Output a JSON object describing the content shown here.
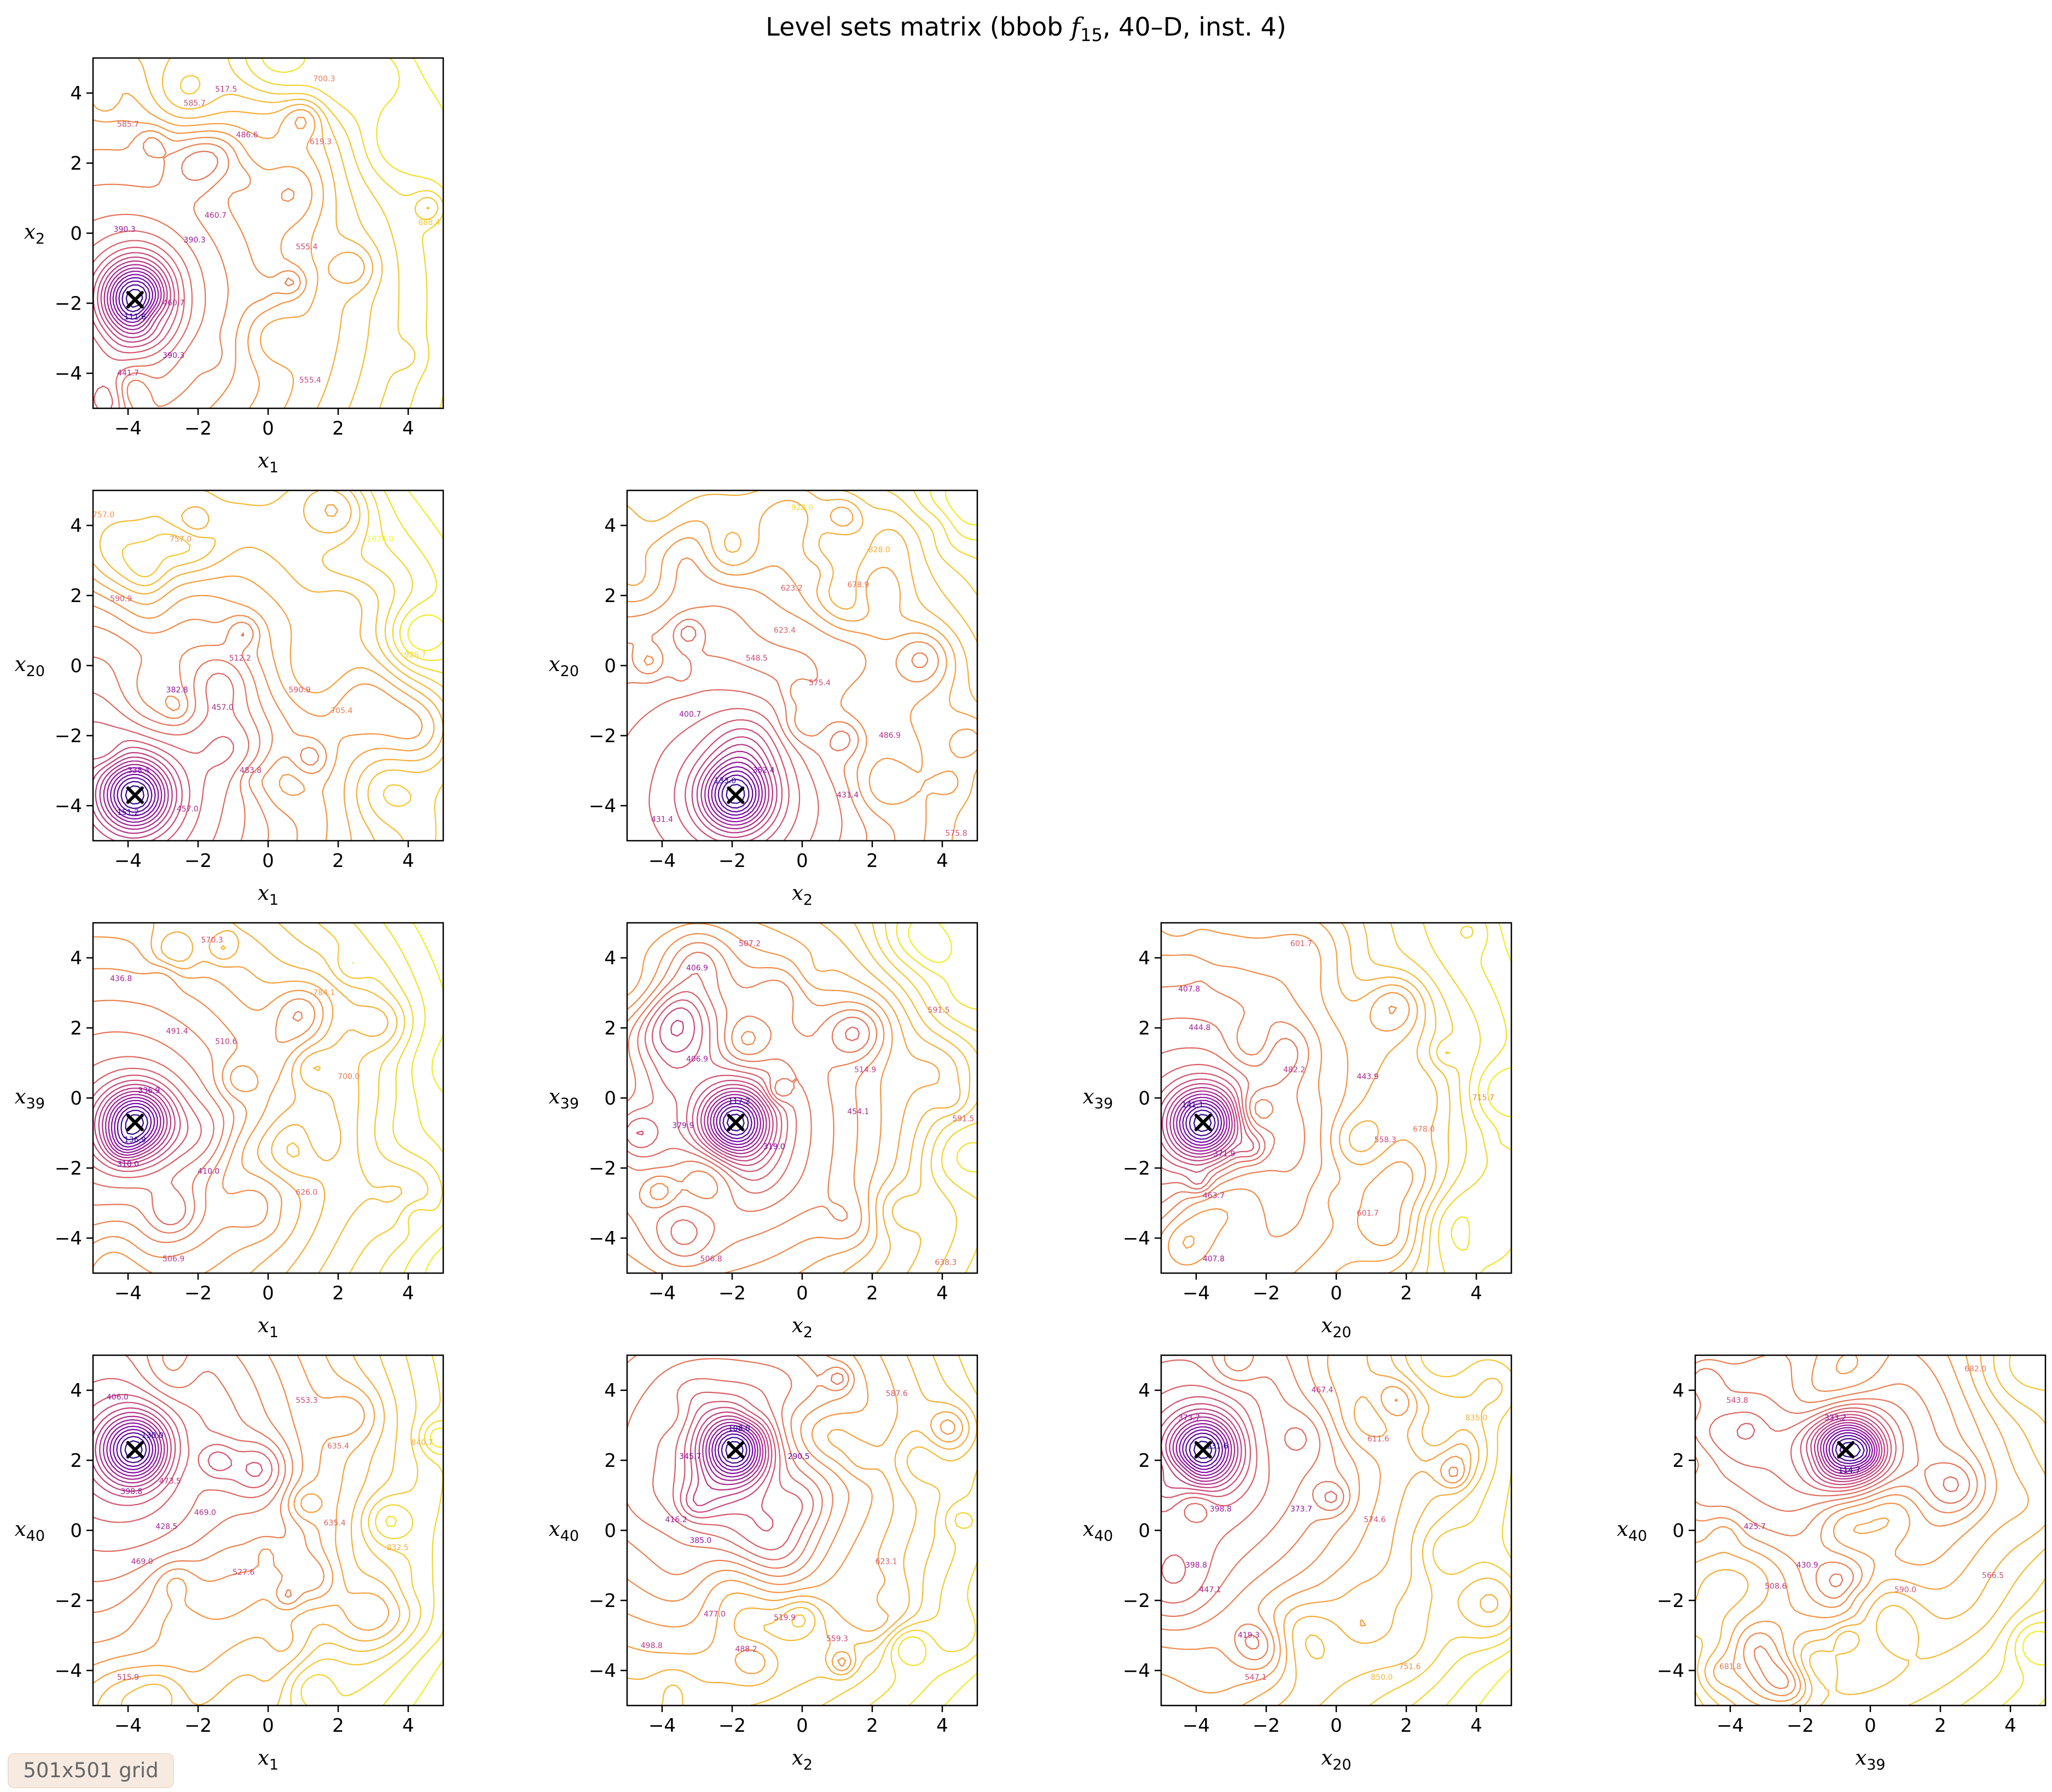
{
  "figure": {
    "title_prefix": "Level sets matrix (bbob ",
    "title_fn": "f",
    "title_sub": "15",
    "title_suffix": ", 40–D, inst. 4)",
    "grid_badge": "501x501 grid"
  },
  "colors": {
    "low": "#0d0887",
    "mid": "#cc4778",
    "high": "#f0f921",
    "marker": "#000000"
  },
  "chart_data": [
    {
      "type": "contour",
      "xlabel": "x1",
      "ylabel": "x2",
      "xlim": [
        -5,
        5
      ],
      "ylim": [
        -5,
        5
      ],
      "xticks": [
        -4,
        -2,
        0,
        2,
        4
      ],
      "yticks": [
        -4,
        -2,
        0,
        2,
        4
      ],
      "x_tick_labels": [
        "−4",
        "−2",
        "0",
        "2",
        "4"
      ],
      "y_tick_labels": [
        "−4",
        "−2",
        "0",
        "2",
        "4"
      ],
      "optimum": [
        -3.8,
        -1.9
      ],
      "min_value": 111.6,
      "contour_labels": [
        {
          "x": -3.8,
          "y": -2.4,
          "text": "111.6"
        },
        {
          "x": -4.1,
          "y": 0.1,
          "text": "390.3"
        },
        {
          "x": -2.1,
          "y": -0.2,
          "text": "390.3"
        },
        {
          "x": -1.5,
          "y": 0.5,
          "text": "460.7"
        },
        {
          "x": -2.7,
          "y": -2.0,
          "text": "460.7"
        },
        {
          "x": -4.0,
          "y": -4.0,
          "text": "441.7"
        },
        {
          "x": -2.7,
          "y": -3.5,
          "text": "390.3"
        },
        {
          "x": -1.2,
          "y": 4.1,
          "text": "517.5"
        },
        {
          "x": -2.1,
          "y": 3.7,
          "text": "585.7"
        },
        {
          "x": -4.0,
          "y": 3.1,
          "text": "585.7"
        },
        {
          "x": 1.5,
          "y": 2.6,
          "text": "619.3"
        },
        {
          "x": 1.1,
          "y": -0.4,
          "text": "555.4"
        },
        {
          "x": 1.2,
          "y": -4.2,
          "text": "555.4"
        },
        {
          "x": 4.6,
          "y": 0.3,
          "text": "888.4"
        },
        {
          "x": 1.6,
          "y": 4.4,
          "text": "700.3"
        },
        {
          "x": -0.6,
          "y": 2.8,
          "text": "486.6"
        }
      ]
    },
    {
      "type": "contour",
      "xlabel": "x1",
      "ylabel": "x20",
      "xlim": [
        -5,
        5
      ],
      "ylim": [
        -5,
        5
      ],
      "xticks": [
        -4,
        -2,
        0,
        2,
        4
      ],
      "yticks": [
        -4,
        -2,
        0,
        2,
        4
      ],
      "x_tick_labels": [
        "−4",
        "−2",
        "0",
        "2",
        "4"
      ],
      "y_tick_labels": [
        "−4",
        "−2",
        "0",
        "2",
        "4"
      ],
      "optimum": [
        -3.8,
        -3.7
      ],
      "min_value": 151.2,
      "contour_labels": [
        {
          "x": -3.7,
          "y": -3.0,
          "text": "338.4"
        },
        {
          "x": -4.0,
          "y": -4.2,
          "text": "151.2"
        },
        {
          "x": -2.6,
          "y": -0.7,
          "text": "382.8"
        },
        {
          "x": -1.3,
          "y": -1.2,
          "text": "457.0"
        },
        {
          "x": 0.9,
          "y": -0.7,
          "text": "590.9"
        },
        {
          "x": -0.5,
          "y": -3.0,
          "text": "483.8"
        },
        {
          "x": -2.3,
          "y": -4.1,
          "text": "457.0"
        },
        {
          "x": -4.7,
          "y": 4.3,
          "text": "757.0"
        },
        {
          "x": -2.5,
          "y": 3.6,
          "text": "757.0"
        },
        {
          "x": 3.2,
          "y": 3.6,
          "text": "1074.0"
        },
        {
          "x": 4.2,
          "y": 0.3,
          "text": "928.7"
        },
        {
          "x": 2.1,
          "y": -1.3,
          "text": "705.4"
        },
        {
          "x": -0.8,
          "y": 0.2,
          "text": "512.2"
        },
        {
          "x": -4.2,
          "y": 1.9,
          "text": "590.9"
        }
      ]
    },
    {
      "type": "contour",
      "xlabel": "x2",
      "ylabel": "x20",
      "xlim": [
        -5,
        5
      ],
      "ylim": [
        -5,
        5
      ],
      "xticks": [
        -4,
        -2,
        0,
        2,
        4
      ],
      "yticks": [
        -4,
        -2,
        0,
        2,
        4
      ],
      "x_tick_labels": [
        "−4",
        "−2",
        "0",
        "2",
        "4"
      ],
      "y_tick_labels": [
        "−4",
        "−2",
        "0",
        "2",
        "4"
      ],
      "optimum": [
        -1.9,
        -3.7
      ],
      "min_value": 133.0,
      "contour_labels": [
        {
          "x": -2.2,
          "y": -3.3,
          "text": "133.0"
        },
        {
          "x": -1.1,
          "y": -3.0,
          "text": "352.4"
        },
        {
          "x": -3.2,
          "y": -1.4,
          "text": "400.7"
        },
        {
          "x": -4.0,
          "y": -4.4,
          "text": "431.4"
        },
        {
          "x": 1.3,
          "y": -3.7,
          "text": "431.4"
        },
        {
          "x": 2.5,
          "y": -2.0,
          "text": "486.9"
        },
        {
          "x": -1.3,
          "y": 0.2,
          "text": "548.5"
        },
        {
          "x": -0.5,
          "y": 1.0,
          "text": "623.4"
        },
        {
          "x": -0.3,
          "y": 2.2,
          "text": "623.2"
        },
        {
          "x": 1.6,
          "y": 2.3,
          "text": "678.9"
        },
        {
          "x": 0.0,
          "y": 4.5,
          "text": "928.0"
        },
        {
          "x": 2.2,
          "y": 3.3,
          "text": "828.0"
        },
        {
          "x": 4.4,
          "y": -4.8,
          "text": "575.8"
        },
        {
          "x": 0.5,
          "y": -0.5,
          "text": "575.4"
        }
      ]
    },
    {
      "type": "contour",
      "xlabel": "x1",
      "ylabel": "x39",
      "xlim": [
        -5,
        5
      ],
      "ylim": [
        -5,
        5
      ],
      "xticks": [
        -4,
        -2,
        0,
        2,
        4
      ],
      "yticks": [
        -4,
        -2,
        0,
        2,
        4
      ],
      "x_tick_labels": [
        "−4",
        "−2",
        "0",
        "2",
        "4"
      ],
      "y_tick_labels": [
        "−4",
        "−2",
        "0",
        "2",
        "4"
      ],
      "optimum": [
        -3.8,
        -0.7
      ],
      "min_value": 136.9,
      "contour_labels": [
        {
          "x": -3.8,
          "y": -1.2,
          "text": "136.9"
        },
        {
          "x": -3.4,
          "y": 0.2,
          "text": "336.9"
        },
        {
          "x": -4.0,
          "y": -1.9,
          "text": "310.0"
        },
        {
          "x": -1.7,
          "y": -2.1,
          "text": "410.0"
        },
        {
          "x": -1.2,
          "y": 1.6,
          "text": "510.6"
        },
        {
          "x": -2.6,
          "y": 1.9,
          "text": "491.4"
        },
        {
          "x": -1.6,
          "y": 4.5,
          "text": "570.3"
        },
        {
          "x": 1.6,
          "y": 3.0,
          "text": "784.1"
        },
        {
          "x": 2.3,
          "y": 0.6,
          "text": "700.0"
        },
        {
          "x": 1.1,
          "y": -2.7,
          "text": "626.0"
        },
        {
          "x": -4.2,
          "y": 3.4,
          "text": "436.8"
        },
        {
          "x": -2.7,
          "y": -4.6,
          "text": "506.9"
        }
      ]
    },
    {
      "type": "contour",
      "xlabel": "x2",
      "ylabel": "x39",
      "xlim": [
        -5,
        5
      ],
      "ylim": [
        -5,
        5
      ],
      "xticks": [
        -4,
        -2,
        0,
        2,
        4
      ],
      "yticks": [
        -4,
        -2,
        0,
        2,
        4
      ],
      "x_tick_labels": [
        "−4",
        "−2",
        "0",
        "2",
        "4"
      ],
      "y_tick_labels": [
        "−4",
        "−2",
        "0",
        "2",
        "4"
      ],
      "optimum": [
        -1.9,
        -0.7
      ],
      "min_value": 117.2,
      "contour_labels": [
        {
          "x": -1.8,
          "y": -0.1,
          "text": "117.2"
        },
        {
          "x": -0.8,
          "y": -1.4,
          "text": "319.0"
        },
        {
          "x": -3.4,
          "y": -0.8,
          "text": "379.9"
        },
        {
          "x": -3.0,
          "y": 1.1,
          "text": "406.9"
        },
        {
          "x": -3.0,
          "y": 3.7,
          "text": "406.9"
        },
        {
          "x": 1.6,
          "y": -0.4,
          "text": "454.1"
        },
        {
          "x": 3.9,
          "y": 2.5,
          "text": "591.5"
        },
        {
          "x": 4.6,
          "y": -0.6,
          "text": "591.5"
        },
        {
          "x": -1.5,
          "y": 4.4,
          "text": "507.2"
        },
        {
          "x": 4.1,
          "y": -4.7,
          "text": "638.3"
        },
        {
          "x": -2.6,
          "y": -4.6,
          "text": "506.8"
        },
        {
          "x": 1.8,
          "y": 0.8,
          "text": "514.9"
        }
      ]
    },
    {
      "type": "contour",
      "xlabel": "x20",
      "ylabel": "x39",
      "xlim": [
        -5,
        5
      ],
      "ylim": [
        -5,
        5
      ],
      "xticks": [
        -4,
        -2,
        0,
        2,
        4
      ],
      "yticks": [
        -4,
        -2,
        0,
        2,
        4
      ],
      "x_tick_labels": [
        "−4",
        "−2",
        "0",
        "2",
        "4"
      ],
      "y_tick_labels": [
        "−4",
        "−2",
        "0",
        "2",
        "4"
      ],
      "optimum": [
        -3.8,
        -0.7
      ],
      "min_value": 141.1,
      "contour_labels": [
        {
          "x": -4.1,
          "y": -0.2,
          "text": "141.1"
        },
        {
          "x": -3.2,
          "y": -1.6,
          "text": "371.9"
        },
        {
          "x": -4.2,
          "y": 3.1,
          "text": "407.8"
        },
        {
          "x": -3.5,
          "y": -4.6,
          "text": "407.8"
        },
        {
          "x": -3.9,
          "y": 2.0,
          "text": "444.8"
        },
        {
          "x": -1.2,
          "y": 0.8,
          "text": "482.2"
        },
        {
          "x": 0.9,
          "y": 0.6,
          "text": "443.9"
        },
        {
          "x": 1.4,
          "y": -1.2,
          "text": "558.3"
        },
        {
          "x": 0.9,
          "y": -3.3,
          "text": "601.7"
        },
        {
          "x": -1.0,
          "y": 4.4,
          "text": "601.7"
        },
        {
          "x": 2.5,
          "y": -0.9,
          "text": "678.0"
        },
        {
          "x": 4.2,
          "y": 0.0,
          "text": "715.7"
        },
        {
          "x": -3.5,
          "y": -2.8,
          "text": "463.7"
        }
      ]
    },
    {
      "type": "contour",
      "xlabel": "x1",
      "ylabel": "x40",
      "xlim": [
        -5,
        5
      ],
      "ylim": [
        -5,
        5
      ],
      "xticks": [
        -4,
        -2,
        0,
        2,
        4
      ],
      "yticks": [
        -4,
        -2,
        0,
        2,
        4
      ],
      "x_tick_labels": [
        "−4",
        "−2",
        "0",
        "2",
        "4"
      ],
      "y_tick_labels": [
        "−4",
        "−2",
        "0",
        "2",
        "4"
      ],
      "optimum": [
        -3.8,
        2.3
      ],
      "min_value": 130.0,
      "contour_labels": [
        {
          "x": -3.3,
          "y": 2.7,
          "text": "130.0"
        },
        {
          "x": -4.3,
          "y": 3.8,
          "text": "406.0"
        },
        {
          "x": -2.8,
          "y": 1.4,
          "text": "473.5"
        },
        {
          "x": -3.9,
          "y": 1.1,
          "text": "398.8"
        },
        {
          "x": -2.9,
          "y": 0.1,
          "text": "428.5"
        },
        {
          "x": -1.8,
          "y": 0.5,
          "text": "469.0"
        },
        {
          "x": -3.6,
          "y": -0.9,
          "text": "469.0"
        },
        {
          "x": -4.0,
          "y": -4.2,
          "text": "515.9"
        },
        {
          "x": 1.1,
          "y": 3.7,
          "text": "553.3"
        },
        {
          "x": 2.0,
          "y": 2.4,
          "text": "635.4"
        },
        {
          "x": 1.9,
          "y": 0.2,
          "text": "635.4"
        },
        {
          "x": 3.7,
          "y": -0.5,
          "text": "832.5"
        },
        {
          "x": 4.4,
          "y": 2.5,
          "text": "840.7"
        },
        {
          "x": -0.7,
          "y": -1.2,
          "text": "527.6"
        }
      ]
    },
    {
      "type": "contour",
      "xlabel": "x2",
      "ylabel": "x40",
      "xlim": [
        -5,
        5
      ],
      "ylim": [
        -5,
        5
      ],
      "xticks": [
        -4,
        -2,
        0,
        2,
        4
      ],
      "yticks": [
        -4,
        -2,
        0,
        2,
        4
      ],
      "x_tick_labels": [
        "−4",
        "−2",
        "0",
        "2",
        "4"
      ],
      "y_tick_labels": [
        "−4",
        "−2",
        "0",
        "2",
        "4"
      ],
      "optimum": [
        -1.9,
        2.3
      ],
      "min_value": 108.0,
      "contour_labels": [
        {
          "x": -1.8,
          "y": 2.9,
          "text": "108.0"
        },
        {
          "x": -0.1,
          "y": 2.1,
          "text": "290.5"
        },
        {
          "x": -3.2,
          "y": 2.1,
          "text": "345.7"
        },
        {
          "x": -2.9,
          "y": -0.3,
          "text": "385.0"
        },
        {
          "x": -3.6,
          "y": 0.3,
          "text": "416.2"
        },
        {
          "x": -2.5,
          "y": -2.4,
          "text": "477.0"
        },
        {
          "x": -1.6,
          "y": -3.4,
          "text": "488.2"
        },
        {
          "x": -4.3,
          "y": -3.3,
          "text": "498.8"
        },
        {
          "x": 1.0,
          "y": -3.1,
          "text": "559.3"
        },
        {
          "x": 2.7,
          "y": 3.9,
          "text": "587.6"
        },
        {
          "x": 2.4,
          "y": -0.9,
          "text": "623.1"
        },
        {
          "x": -0.5,
          "y": -2.5,
          "text": "519.9"
        }
      ]
    },
    {
      "type": "contour",
      "xlabel": "x20",
      "ylabel": "x40",
      "xlim": [
        -5,
        5
      ],
      "ylim": [
        -5,
        5
      ],
      "xticks": [
        -4,
        -2,
        0,
        2,
        4
      ],
      "yticks": [
        -4,
        -2,
        0,
        2,
        4
      ],
      "x_tick_labels": [
        "−4",
        "−2",
        "0",
        "2",
        "4"
      ],
      "y_tick_labels": [
        "−4",
        "−2",
        "0",
        "2",
        "4"
      ],
      "optimum": [
        -3.8,
        2.3
      ],
      "min_value": 131.6,
      "contour_labels": [
        {
          "x": -3.4,
          "y": 2.4,
          "text": "131.6"
        },
        {
          "x": -4.2,
          "y": 3.2,
          "text": "373.7"
        },
        {
          "x": -1.0,
          "y": 0.6,
          "text": "373.7"
        },
        {
          "x": -3.3,
          "y": 0.6,
          "text": "398.8"
        },
        {
          "x": -4.0,
          "y": -1.0,
          "text": "398.8"
        },
        {
          "x": -3.6,
          "y": -1.7,
          "text": "447.1"
        },
        {
          "x": -2.5,
          "y": -3.0,
          "text": "419.3"
        },
        {
          "x": -2.3,
          "y": -4.2,
          "text": "547.1"
        },
        {
          "x": 1.1,
          "y": 0.3,
          "text": "574.6"
        },
        {
          "x": -0.4,
          "y": 4.0,
          "text": "467.4"
        },
        {
          "x": 1.2,
          "y": 2.6,
          "text": "611.6"
        },
        {
          "x": 2.1,
          "y": -3.9,
          "text": "751.6"
        },
        {
          "x": 1.3,
          "y": -4.2,
          "text": "850.0"
        },
        {
          "x": 4.0,
          "y": 3.2,
          "text": "835.0"
        }
      ]
    },
    {
      "type": "contour",
      "xlabel": "x39",
      "ylabel": "x40",
      "xlim": [
        -5,
        5
      ],
      "ylim": [
        -5,
        5
      ],
      "xticks": [
        -4,
        -2,
        0,
        2,
        4
      ],
      "yticks": [
        -4,
        -2,
        0,
        2,
        4
      ],
      "x_tick_labels": [
        "−4",
        "−2",
        "0",
        "2",
        "4"
      ],
      "y_tick_labels": [
        "−4",
        "−2",
        "0",
        "2",
        "4"
      ],
      "optimum": [
        -0.7,
        2.3
      ],
      "min_value": 114.7,
      "contour_labels": [
        {
          "x": -0.6,
          "y": 1.7,
          "text": "114.7"
        },
        {
          "x": -1.0,
          "y": 3.2,
          "text": "333.2"
        },
        {
          "x": -3.3,
          "y": 0.1,
          "text": "425.7"
        },
        {
          "x": -1.8,
          "y": -1.0,
          "text": "430.9"
        },
        {
          "x": -2.7,
          "y": -1.6,
          "text": "508.6"
        },
        {
          "x": 1.0,
          "y": -1.7,
          "text": "590.0"
        },
        {
          "x": 3.5,
          "y": -1.3,
          "text": "566.5"
        },
        {
          "x": -4.0,
          "y": -3.9,
          "text": "681.8"
        },
        {
          "x": 3.0,
          "y": 4.6,
          "text": "682.0"
        },
        {
          "x": -3.8,
          "y": 3.7,
          "text": "543.8"
        }
      ]
    }
  ]
}
